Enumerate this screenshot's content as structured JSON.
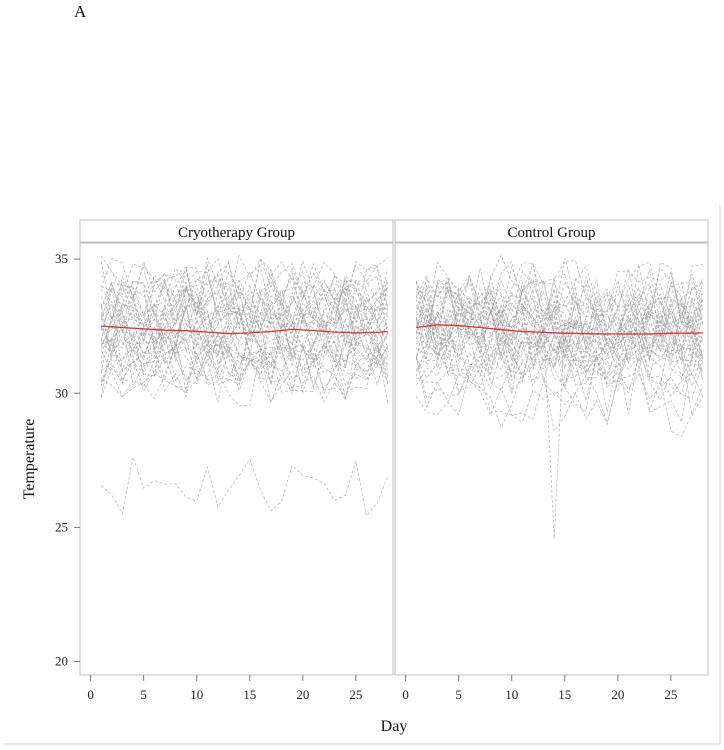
{
  "panel_letter": "A",
  "chart_data": {
    "type": "line",
    "facets": [
      "Cryotherapy Group",
      "Control Group"
    ],
    "xlabel": "Day",
    "ylabel": "Temperature",
    "xlim": [
      -1,
      28.5
    ],
    "ylim": [
      19.5,
      35.6
    ],
    "xticks": [
      0,
      5,
      10,
      15,
      20,
      25
    ],
    "yticks": [
      20,
      25,
      30,
      35
    ],
    "individual_lines": {
      "color": "#9a9a9a",
      "style": "dashed",
      "approx_subjects_per_group": 40
    },
    "mean_line_color": "#e0302a",
    "series": [
      {
        "facet": "Cryotherapy Group",
        "x": [
          1,
          3,
          5,
          7,
          9,
          11,
          13,
          15,
          17,
          19,
          21,
          23,
          25,
          27,
          28
        ],
        "mean": [
          32.5,
          32.45,
          32.4,
          32.35,
          32.33,
          32.28,
          32.22,
          32.25,
          32.3,
          32.38,
          32.34,
          32.28,
          32.25,
          32.27,
          32.3
        ]
      },
      {
        "facet": "Control Group",
        "x": [
          1,
          3,
          5,
          7,
          9,
          11,
          13,
          15,
          17,
          19,
          21,
          23,
          25,
          27,
          28
        ],
        "mean": [
          32.45,
          32.55,
          32.52,
          32.45,
          32.37,
          32.3,
          32.27,
          32.24,
          32.22,
          32.21,
          32.21,
          32.21,
          32.24,
          32.24,
          32.25
        ]
      }
    ]
  }
}
